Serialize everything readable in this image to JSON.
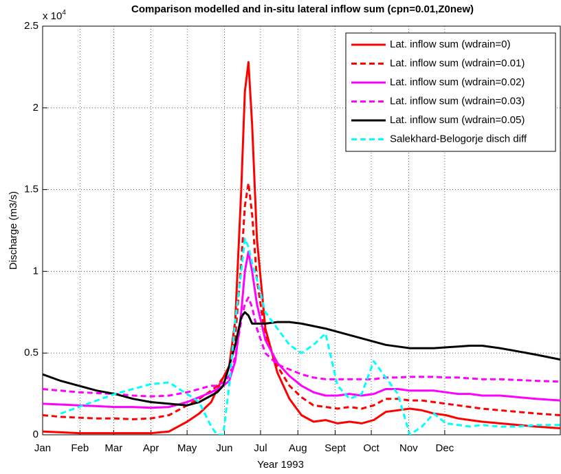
{
  "chart_data": {
    "type": "line",
    "title": "Comparison modelled and in-situ lateral inflow sum (cpn=0.01,Z0new)",
    "x_label": "Year 1993",
    "y_label": "Discharge (m3/s)",
    "y_multiplier": {
      "base": "x 10",
      "exponent": "4"
    },
    "grid": true,
    "legend": "upper right",
    "xlim": [
      0,
      430
    ],
    "xticks": [
      {
        "value": 0,
        "label": "Jan"
      },
      {
        "value": 31,
        "label": "Feb"
      },
      {
        "value": 59,
        "label": "Mar"
      },
      {
        "value": 90,
        "label": "Apr"
      },
      {
        "value": 120,
        "label": "May"
      },
      {
        "value": 151,
        "label": "Jun"
      },
      {
        "value": 181,
        "label": "Jul"
      },
      {
        "value": 212,
        "label": "Aug"
      },
      {
        "value": 243,
        "label": "Sept"
      },
      {
        "value": 273,
        "label": "Oct"
      },
      {
        "value": 304,
        "label": "Nov"
      },
      {
        "value": 334,
        "label": "Dec"
      }
    ],
    "ylim": [
      0,
      2.5
    ],
    "yticks": [
      0,
      0.5,
      1,
      1.5,
      2,
      2.5
    ],
    "x": [
      0,
      15,
      30,
      45,
      60,
      75,
      90,
      105,
      120,
      130,
      140,
      145,
      150,
      155,
      160,
      165,
      168,
      171,
      174,
      178,
      185,
      195,
      205,
      215,
      225,
      235,
      245,
      255,
      265,
      275,
      285,
      295,
      305,
      315,
      325,
      335,
      345,
      355,
      365,
      380,
      395,
      410,
      430
    ],
    "series": [
      {
        "name": "Lat. inflow sum (wdrain=0)",
        "color": "#ff0000",
        "style": "solid",
        "values": [
          0.02,
          0.015,
          0.01,
          0.01,
          0.01,
          0.01,
          0.01,
          0.02,
          0.08,
          0.13,
          0.2,
          0.28,
          0.35,
          0.42,
          0.7,
          1.5,
          2.1,
          2.28,
          1.9,
          1.2,
          0.65,
          0.38,
          0.22,
          0.12,
          0.08,
          0.09,
          0.07,
          0.08,
          0.07,
          0.09,
          0.14,
          0.15,
          0.16,
          0.15,
          0.13,
          0.12,
          0.1,
          0.09,
          0.08,
          0.07,
          0.06,
          0.05,
          0.04
        ]
      },
      {
        "name": "Lat. inflow sum (wdrain=0.01)",
        "color": "#ff0000",
        "style": "dashed",
        "values": [
          0.12,
          0.11,
          0.105,
          0.1,
          0.1,
          0.095,
          0.1,
          0.12,
          0.18,
          0.22,
          0.27,
          0.3,
          0.35,
          0.42,
          0.6,
          1.05,
          1.4,
          1.54,
          1.35,
          0.95,
          0.6,
          0.42,
          0.3,
          0.23,
          0.18,
          0.17,
          0.16,
          0.17,
          0.16,
          0.18,
          0.22,
          0.22,
          0.21,
          0.21,
          0.2,
          0.19,
          0.18,
          0.17,
          0.16,
          0.15,
          0.14,
          0.13,
          0.12
        ]
      },
      {
        "name": "Lat. inflow sum (wdrain=0.02)",
        "color": "#ff00ff",
        "style": "solid",
        "values": [
          0.19,
          0.185,
          0.18,
          0.175,
          0.17,
          0.17,
          0.165,
          0.17,
          0.2,
          0.23,
          0.26,
          0.28,
          0.3,
          0.33,
          0.45,
          0.75,
          1.0,
          1.12,
          1.0,
          0.8,
          0.58,
          0.44,
          0.36,
          0.3,
          0.26,
          0.24,
          0.24,
          0.25,
          0.24,
          0.25,
          0.28,
          0.28,
          0.27,
          0.27,
          0.27,
          0.26,
          0.25,
          0.25,
          0.24,
          0.24,
          0.23,
          0.22,
          0.21
        ]
      },
      {
        "name": "Lat. inflow sum (wdrain=0.03)",
        "color": "#ff00ff",
        "style": "dashed",
        "values": [
          0.28,
          0.27,
          0.26,
          0.255,
          0.25,
          0.24,
          0.235,
          0.24,
          0.26,
          0.28,
          0.3,
          0.3,
          0.32,
          0.36,
          0.48,
          0.7,
          0.8,
          0.84,
          0.78,
          0.65,
          0.5,
          0.43,
          0.4,
          0.37,
          0.35,
          0.34,
          0.34,
          0.34,
          0.34,
          0.34,
          0.35,
          0.35,
          0.355,
          0.355,
          0.355,
          0.35,
          0.35,
          0.345,
          0.34,
          0.34,
          0.335,
          0.33,
          0.325
        ]
      },
      {
        "name": "Lat. inflow sum (wdrain=0.05)",
        "color": "#000000",
        "style": "solid",
        "values": [
          0.37,
          0.33,
          0.3,
          0.27,
          0.25,
          0.22,
          0.2,
          0.19,
          0.18,
          0.2,
          0.24,
          0.26,
          0.3,
          0.42,
          0.55,
          0.72,
          0.75,
          0.73,
          0.68,
          0.68,
          0.68,
          0.69,
          0.69,
          0.68,
          0.665,
          0.65,
          0.63,
          0.61,
          0.59,
          0.57,
          0.55,
          0.54,
          0.53,
          0.53,
          0.53,
          0.535,
          0.54,
          0.545,
          0.545,
          0.53,
          0.51,
          0.49,
          0.46
        ]
      },
      {
        "name": "Salekhard-Belogorje disch diff",
        "color": "#00ffff",
        "style": "dashed",
        "values": [
          null,
          0.13,
          0.17,
          0.21,
          0.25,
          0.28,
          0.31,
          0.32,
          0.25,
          0.2,
          0.05,
          0,
          0,
          0.3,
          0.7,
          1.0,
          1.2,
          1.15,
          1.05,
          0.95,
          0.75,
          0.65,
          0.55,
          0.5,
          0.55,
          0.62,
          0.3,
          0.22,
          0.25,
          0.45,
          0.35,
          0.25,
          0,
          0.05,
          0.13,
          0.07,
          0.06,
          0.05,
          0.06,
          0.05,
          0.05,
          0.06,
          0.06
        ]
      }
    ]
  }
}
